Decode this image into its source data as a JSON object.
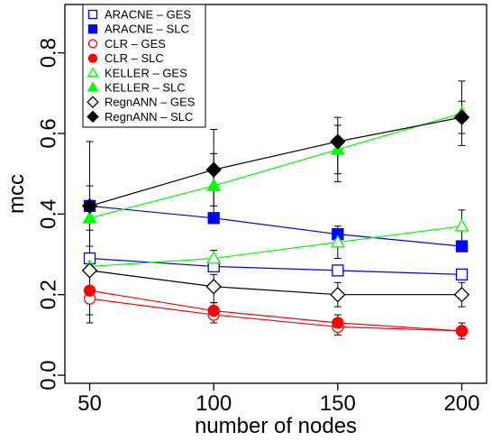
{
  "chart_data": {
    "type": "line",
    "title": "",
    "xlabel": "number of nodes",
    "ylabel": "mcc",
    "x": [
      50,
      100,
      150,
      200
    ],
    "xlim": [
      40,
      210
    ],
    "ylim": [
      -0.02,
      0.92
    ],
    "x_ticks": [
      "50",
      "100",
      "150",
      "200"
    ],
    "y_ticks": [
      "0.0",
      "0.2",
      "0.4",
      "0.6",
      "0.8"
    ],
    "y_tick_values": [
      0.0,
      0.2,
      0.4,
      0.6,
      0.8
    ],
    "grid": false,
    "legend_position": "top-left",
    "series": [
      {
        "name": "ARACNE – GES",
        "color": "#0000ff",
        "marker": "square-open",
        "values": [
          0.29,
          0.27,
          0.26,
          0.25
        ],
        "err_low": [
          null,
          null,
          null,
          null
        ],
        "err_high": [
          null,
          null,
          null,
          null
        ]
      },
      {
        "name": "ARACNE – SLC",
        "color": "#0000ff",
        "marker": "square-filled",
        "values": [
          0.42,
          0.39,
          0.35,
          0.32
        ],
        "err_low": [
          null,
          null,
          null,
          null
        ],
        "err_high": [
          null,
          null,
          null,
          null
        ]
      },
      {
        "name": "CLR – GES",
        "color": "#ff0000",
        "marker": "circle-open",
        "values": [
          0.19,
          0.15,
          0.12,
          0.11
        ],
        "err_low": [
          0.13,
          0.13,
          0.1,
          0.09
        ],
        "err_high": [
          0.26,
          0.18,
          0.15,
          0.13
        ]
      },
      {
        "name": "CLR – SLC",
        "color": "#ff0000",
        "marker": "circle-filled",
        "values": [
          0.21,
          0.16,
          0.13,
          0.11
        ],
        "err_low": [
          null,
          null,
          null,
          null
        ],
        "err_high": [
          null,
          null,
          null,
          null
        ]
      },
      {
        "name": "KELLER – GES",
        "color": "#00ff00",
        "marker": "triangle-open",
        "values": [
          0.27,
          0.29,
          0.33,
          0.37
        ],
        "err_low": [
          0.22,
          0.26,
          0.29,
          0.33
        ],
        "err_high": [
          0.3,
          0.31,
          0.37,
          0.41
        ]
      },
      {
        "name": "KELLER – SLC",
        "color": "#00ff00",
        "marker": "triangle-filled",
        "values": [
          0.39,
          0.47,
          0.56,
          0.65
        ],
        "err_low": [
          0.32,
          0.4,
          0.5,
          0.6
        ],
        "err_high": [
          0.47,
          0.55,
          0.62,
          0.68
        ]
      },
      {
        "name": "RegnANN – GES",
        "color": "#000000",
        "marker": "diamond-open",
        "values": [
          0.26,
          0.22,
          0.2,
          0.2
        ],
        "err_low": [
          0.15,
          0.18,
          0.17,
          0.17
        ],
        "err_high": [
          0.36,
          0.25,
          0.23,
          0.23
        ]
      },
      {
        "name": "RegnANN – SLC",
        "color": "#000000",
        "marker": "diamond-filled",
        "values": [
          0.42,
          0.51,
          0.58,
          0.64
        ],
        "err_low": [
          0.26,
          0.42,
          0.48,
          0.57
        ],
        "err_high": [
          0.58,
          0.61,
          0.64,
          0.73
        ]
      }
    ]
  }
}
